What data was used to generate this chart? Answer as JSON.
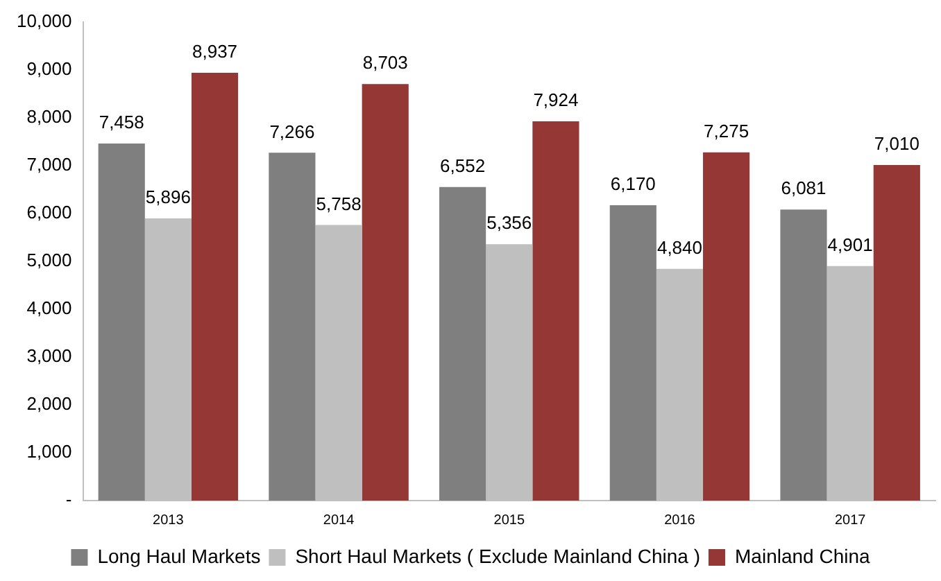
{
  "chart_data": {
    "type": "bar",
    "categories": [
      "2013",
      "2014",
      "2015",
      "2016",
      "2017"
    ],
    "series": [
      {
        "name": "Long Haul Markets",
        "color": "#7f7f7f",
        "values": [
          7458,
          7266,
          6552,
          6170,
          6081
        ],
        "value_labels": [
          "7,458",
          "7,266",
          "6,552",
          "6,170",
          "6,081"
        ]
      },
      {
        "name": "Short Haul Markets ( Exclude Mainland China )",
        "color": "#bfbfbf",
        "values": [
          5896,
          5758,
          5356,
          4840,
          4901
        ],
        "value_labels": [
          "5,896",
          "5,758",
          "5,356",
          "4,840",
          "4,901"
        ]
      },
      {
        "name": "Mainland China",
        "color": "#953735",
        "values": [
          8937,
          8703,
          7924,
          7275,
          7010
        ],
        "value_labels": [
          "8,937",
          "8,703",
          "7,924",
          "7,275",
          "7,010"
        ]
      }
    ],
    "ylim": [
      0,
      10000
    ],
    "yticks": [
      {
        "value": 0,
        "label": "-"
      },
      {
        "value": 1000,
        "label": "1,000"
      },
      {
        "value": 2000,
        "label": "2,000"
      },
      {
        "value": 3000,
        "label": "3,000"
      },
      {
        "value": 4000,
        "label": "4,000"
      },
      {
        "value": 5000,
        "label": "5,000"
      },
      {
        "value": 6000,
        "label": "6,000"
      },
      {
        "value": 7000,
        "label": "7,000"
      },
      {
        "value": 8000,
        "label": "8,000"
      },
      {
        "value": 9000,
        "label": "9,000"
      },
      {
        "value": 10000,
        "label": "10,000"
      }
    ],
    "grid": false,
    "legend": "bottom"
  }
}
